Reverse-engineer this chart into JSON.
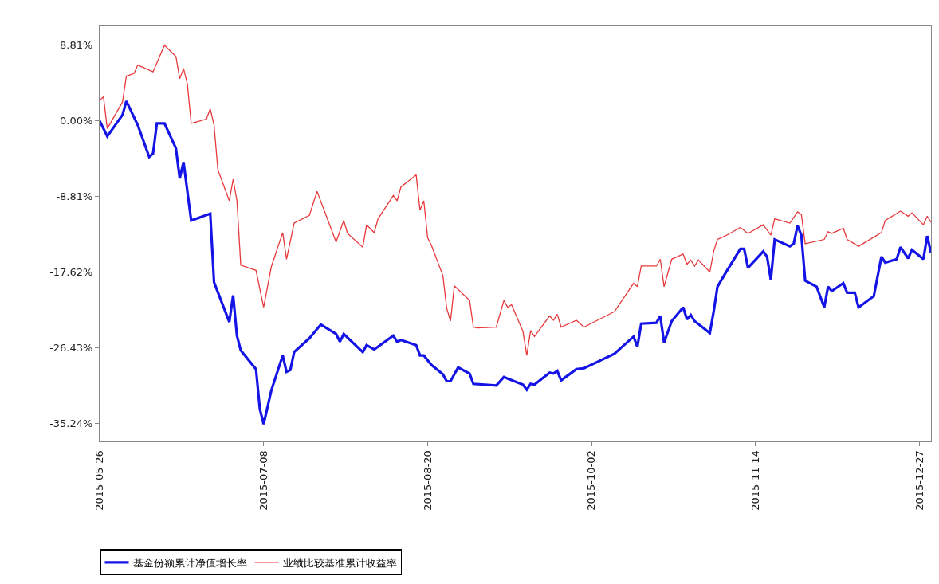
{
  "chart_data": {
    "type": "line",
    "xlim": [
      "2015-05-26",
      "2015-12-30"
    ],
    "xticks": [
      "2015-05-26",
      "2015-07-08",
      "2015-08-20",
      "2015-10-02",
      "2015-11-14",
      "2015-12-27"
    ],
    "ylim": [
      -37.3,
      11.0
    ],
    "yticks": [
      {
        "value": 8.81,
        "label": "8.81%"
      },
      {
        "value": 0,
        "label": "0.00%"
      },
      {
        "value": -8.81,
        "label": "-8.81%"
      },
      {
        "value": -17.62,
        "label": "-17.62%"
      },
      {
        "value": -26.43,
        "label": "-26.43%"
      },
      {
        "value": -35.24,
        "label": "-35.24%"
      }
    ],
    "legend": "bottom",
    "marker": "none",
    "line_style": "solid",
    "series": [
      {
        "name": "基金份额累计净值增长率",
        "color": "#1414e6",
        "x": [
          "2015-05-26",
          "2015-05-28",
          "2015-06-01",
          "2015-06-02",
          "2015-06-05",
          "2015-06-08",
          "2015-06-09",
          "2015-06-10",
          "2015-06-12",
          "2015-06-15",
          "2015-06-16",
          "2015-06-17",
          "2015-06-19",
          "2015-06-24",
          "2015-06-25",
          "2015-06-29",
          "2015-06-30",
          "2015-07-01",
          "2015-07-02",
          "2015-07-06",
          "2015-07-07",
          "2015-07-08",
          "2015-07-10",
          "2015-07-13",
          "2015-07-14",
          "2015-07-15",
          "2015-07-16",
          "2015-07-20",
          "2015-07-23",
          "2015-07-27",
          "2015-07-28",
          "2015-07-29",
          "2015-08-03",
          "2015-08-04",
          "2015-08-06",
          "2015-08-11",
          "2015-08-12",
          "2015-08-13",
          "2015-08-17",
          "2015-08-18",
          "2015-08-19",
          "2015-08-21",
          "2015-08-24",
          "2015-08-25",
          "2015-08-26",
          "2015-08-28",
          "2015-08-31",
          "2015-09-01",
          "2015-09-07",
          "2015-09-09",
          "2015-09-10",
          "2015-09-14",
          "2015-09-15",
          "2015-09-16",
          "2015-09-17",
          "2015-09-21",
          "2015-09-22",
          "2015-09-23",
          "2015-09-24",
          "2015-09-28",
          "2015-09-30",
          "2015-10-08",
          "2015-10-13",
          "2015-10-14",
          "2015-10-15",
          "2015-10-19",
          "2015-10-20",
          "2015-10-21",
          "2015-10-23",
          "2015-10-26",
          "2015-10-27",
          "2015-10-28",
          "2015-10-29",
          "2015-11-02",
          "2015-11-03",
          "2015-11-04",
          "2015-11-06",
          "2015-11-10",
          "2015-11-11",
          "2015-11-12",
          "2015-11-16",
          "2015-11-17",
          "2015-11-18",
          "2015-11-19",
          "2015-11-23",
          "2015-11-24",
          "2015-11-25",
          "2015-11-26",
          "2015-11-27",
          "2015-11-30",
          "2015-12-02",
          "2015-12-03",
          "2015-12-04",
          "2015-12-07",
          "2015-12-08",
          "2015-12-10",
          "2015-12-11",
          "2015-12-15",
          "2015-12-17",
          "2015-12-18",
          "2015-12-21",
          "2015-12-22",
          "2015-12-24",
          "2015-12-25",
          "2015-12-28",
          "2015-12-29",
          "2015-12-30"
        ],
        "values": [
          0.0,
          -1.8,
          0.7,
          2.3,
          -0.5,
          -4.2,
          -3.8,
          -0.3,
          -0.3,
          -3.2,
          -6.7,
          -4.8,
          -11.6,
          -10.8,
          -18.8,
          -23.4,
          -20.3,
          -25.0,
          -26.7,
          -28.9,
          -33.5,
          -35.3,
          -31.4,
          -27.3,
          -29.2,
          -29.0,
          -26.9,
          -25.3,
          -23.7,
          -24.8,
          -25.7,
          -24.8,
          -26.9,
          -26.1,
          -26.6,
          -25.0,
          -25.7,
          -25.5,
          -26.1,
          -27.3,
          -27.3,
          -28.4,
          -29.5,
          -30.3,
          -30.3,
          -28.7,
          -29.4,
          -30.6,
          -30.8,
          -29.8,
          -30.0,
          -30.7,
          -31.3,
          -30.6,
          -30.7,
          -29.3,
          -29.4,
          -29.1,
          -30.2,
          -28.9,
          -28.8,
          -27.1,
          -25.1,
          -26.3,
          -23.6,
          -23.5,
          -22.7,
          -25.8,
          -23.3,
          -21.7,
          -23.1,
          -22.6,
          -23.3,
          -24.7,
          -22.2,
          -19.3,
          -17.8,
          -14.9,
          -14.9,
          -17.1,
          -15.2,
          -15.8,
          -18.5,
          -13.8,
          -14.6,
          -14.3,
          -12.2,
          -13.3,
          -18.6,
          -19.3,
          -21.7,
          -19.3,
          -19.8,
          -18.9,
          -20.0,
          -20.0,
          -21.7,
          -20.4,
          -15.8,
          -16.5,
          -16.1,
          -14.7,
          -16.0,
          -15.0,
          -16.1,
          -13.4,
          -15.4
        ]
      },
      {
        "name": "业绩比较基准累计收益率",
        "color": "#e8393c",
        "x": [
          "2015-05-26",
          "2015-05-27",
          "2015-05-28",
          "2015-06-01",
          "2015-06-02",
          "2015-06-04",
          "2015-06-05",
          "2015-06-09",
          "2015-06-12",
          "2015-06-15",
          "2015-06-16",
          "2015-06-17",
          "2015-06-18",
          "2015-06-19",
          "2015-06-23",
          "2015-06-24",
          "2015-06-25",
          "2015-06-26",
          "2015-06-29",
          "2015-06-30",
          "2015-07-01",
          "2015-07-02",
          "2015-07-06",
          "2015-07-08",
          "2015-07-10",
          "2015-07-13",
          "2015-07-14",
          "2015-07-16",
          "2015-07-20",
          "2015-07-22",
          "2015-07-27",
          "2015-07-29",
          "2015-07-30",
          "2015-08-03",
          "2015-08-04",
          "2015-08-06",
          "2015-08-07",
          "2015-08-11",
          "2015-08-12",
          "2015-08-13",
          "2015-08-17",
          "2015-08-18",
          "2015-08-19",
          "2015-08-20",
          "2015-08-21",
          "2015-08-24",
          "2015-08-25",
          "2015-08-26",
          "2015-08-27",
          "2015-08-31",
          "2015-09-01",
          "2015-09-02",
          "2015-09-07",
          "2015-09-09",
          "2015-09-10",
          "2015-09-11",
          "2015-09-14",
          "2015-09-15",
          "2015-09-16",
          "2015-09-17",
          "2015-09-21",
          "2015-09-22",
          "2015-09-23",
          "2015-09-24",
          "2015-09-28",
          "2015-09-30",
          "2015-10-08",
          "2015-10-13",
          "2015-10-14",
          "2015-10-15",
          "2015-10-19",
          "2015-10-20",
          "2015-10-21",
          "2015-10-23",
          "2015-10-26",
          "2015-10-27",
          "2015-10-28",
          "2015-10-29",
          "2015-10-30",
          "2015-11-02",
          "2015-11-03",
          "2015-11-04",
          "2015-11-06",
          "2015-11-10",
          "2015-11-12",
          "2015-11-16",
          "2015-11-18",
          "2015-11-19",
          "2015-11-23",
          "2015-11-25",
          "2015-11-26",
          "2015-11-27",
          "2015-12-02",
          "2015-12-03",
          "2015-12-04",
          "2015-12-07",
          "2015-12-08",
          "2015-12-11",
          "2015-12-17",
          "2015-12-18",
          "2015-12-22",
          "2015-12-24",
          "2015-12-25",
          "2015-12-28",
          "2015-12-29",
          "2015-12-30"
        ],
        "values": [
          2.4,
          2.8,
          -0.9,
          2.2,
          5.2,
          5.5,
          6.5,
          5.7,
          8.8,
          7.5,
          4.9,
          6.1,
          4.3,
          -0.3,
          0.2,
          1.4,
          -0.5,
          -5.7,
          -9.3,
          -6.8,
          -9.3,
          -16.8,
          -17.4,
          -21.7,
          -17.0,
          -13.0,
          -16.1,
          -11.9,
          -11.0,
          -8.2,
          -14.1,
          -11.6,
          -13.1,
          -14.7,
          -12.1,
          -13.0,
          -11.4,
          -8.7,
          -9.3,
          -7.7,
          -6.3,
          -10.4,
          -9.3,
          -13.6,
          -14.5,
          -18.0,
          -21.8,
          -23.3,
          -19.2,
          -20.9,
          -24.0,
          -24.1,
          -24.0,
          -20.9,
          -21.7,
          -21.4,
          -24.5,
          -27.3,
          -24.4,
          -25.1,
          -22.7,
          -23.2,
          -22.5,
          -24.0,
          -23.2,
          -24.0,
          -22.2,
          -18.9,
          -19.3,
          -16.9,
          -16.9,
          -16.1,
          -19.3,
          -16.1,
          -15.5,
          -16.7,
          -16.2,
          -16.9,
          -16.2,
          -17.6,
          -15.2,
          -13.8,
          -13.4,
          -12.4,
          -13.1,
          -12.1,
          -13.3,
          -11.4,
          -11.9,
          -10.6,
          -10.9,
          -14.3,
          -13.8,
          -12.9,
          -13.1,
          -12.5,
          -13.8,
          -14.6,
          -13.0,
          -11.6,
          -10.5,
          -11.1,
          -10.7,
          -12.1,
          -11.1,
          -11.8
        ]
      }
    ]
  }
}
